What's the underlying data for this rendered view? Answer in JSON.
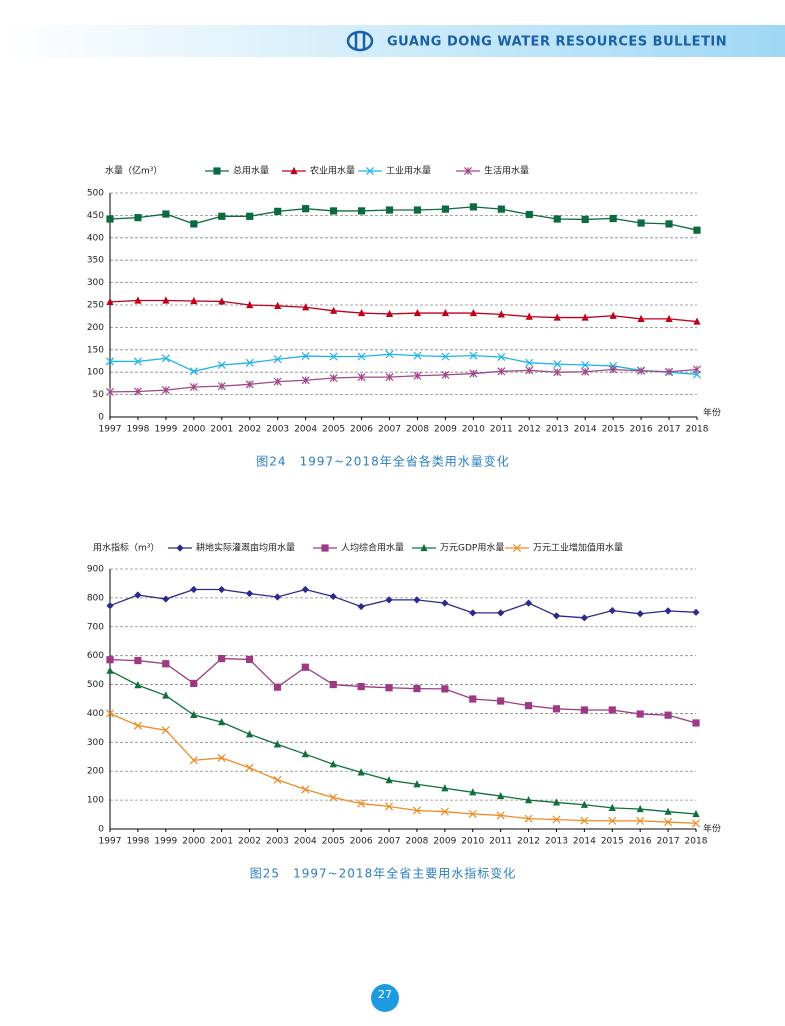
{
  "header": {
    "title": "GUANG DONG WATER RESOURCES BULLETIN"
  },
  "page_number": "27",
  "chart_data": [
    {
      "type": "line",
      "y_label": "水量（亿m³）",
      "x_label": "年份",
      "caption": "图24　1997~2018年全省各类用水量变化",
      "categories": [
        "1997",
        "1998",
        "1999",
        "2000",
        "2001",
        "2002",
        "2003",
        "2004",
        "2005",
        "2006",
        "2007",
        "2008",
        "2009",
        "2010",
        "2011",
        "2012",
        "2013",
        "2014",
        "2015",
        "2016",
        "2017",
        "2018"
      ],
      "ylim": [
        0,
        500
      ],
      "yticks": [
        0,
        50,
        100,
        150,
        200,
        250,
        300,
        350,
        400,
        450,
        500
      ],
      "grid": true,
      "series": [
        {
          "name": "总用水量",
          "color": "#0b6b3f",
          "marker": "square",
          "values": [
            442,
            445,
            453,
            431,
            448,
            448,
            459,
            465,
            460,
            460,
            462,
            462,
            464,
            469,
            464,
            452,
            442,
            441,
            443,
            433,
            431,
            417
          ]
        },
        {
          "name": "农业用水量",
          "color": "#c0001a",
          "marker": "triangle",
          "values": [
            257,
            260,
            260,
            259,
            258,
            250,
            248,
            245,
            237,
            232,
            230,
            232,
            232,
            232,
            229,
            224,
            222,
            222,
            226,
            219,
            219,
            213
          ]
        },
        {
          "name": "工业用水量",
          "color": "#1fb4e8",
          "marker": "x",
          "values": [
            124,
            124,
            131,
            102,
            116,
            121,
            129,
            136,
            135,
            135,
            140,
            137,
            135,
            137,
            134,
            121,
            118,
            116,
            114,
            104,
            100,
            95
          ]
        },
        {
          "name": "生活用水量",
          "color": "#a0488a",
          "marker": "star",
          "values": [
            56,
            57,
            60,
            67,
            69,
            73,
            79,
            82,
            87,
            89,
            89,
            92,
            94,
            97,
            102,
            104,
            100,
            101,
            106,
            103,
            101,
            106
          ]
        }
      ]
    },
    {
      "type": "line",
      "y_label": "用水指标（m³）",
      "x_label": "年份",
      "caption": "图25　1997~2018年全省主要用水指标变化",
      "categories": [
        "1997",
        "1998",
        "1999",
        "2000",
        "2001",
        "2002",
        "2003",
        "2004",
        "2005",
        "2006",
        "2007",
        "2008",
        "2009",
        "2010",
        "2011",
        "2012",
        "2013",
        "2014",
        "2015",
        "2016",
        "2017",
        "2018"
      ],
      "ylim": [
        0,
        900
      ],
      "yticks": [
        0,
        100,
        200,
        300,
        400,
        500,
        600,
        700,
        800,
        900
      ],
      "grid": true,
      "series": [
        {
          "name": "耕地实际灌溉亩均用水量",
          "color": "#2b2b8c",
          "marker": "diamond",
          "values": [
            773,
            810,
            796,
            829,
            829,
            815,
            803,
            829,
            805,
            770,
            793,
            793,
            782,
            748,
            748,
            782,
            738,
            731,
            756,
            745,
            755,
            750
          ]
        },
        {
          "name": "人均综合用水量",
          "color": "#9e3a85",
          "marker": "square",
          "values": [
            586,
            583,
            572,
            504,
            590,
            587,
            491,
            560,
            500,
            493,
            489,
            486,
            485,
            450,
            443,
            427,
            416,
            412,
            412,
            398,
            394,
            367
          ]
        },
        {
          "name": "万元GDP用水量",
          "color": "#10703a",
          "marker": "triangle",
          "values": [
            548,
            498,
            462,
            395,
            370,
            328,
            293,
            259,
            224,
            196,
            169,
            155,
            141,
            127,
            114,
            100,
            92,
            84,
            73,
            69,
            60,
            52
          ]
        },
        {
          "name": "万元工业增加值用水量",
          "color": "#f08a24",
          "marker": "x",
          "values": [
            400,
            358,
            342,
            238,
            246,
            212,
            170,
            137,
            109,
            88,
            78,
            64,
            60,
            52,
            47,
            36,
            33,
            29,
            28,
            28,
            24,
            20
          ]
        }
      ]
    }
  ]
}
